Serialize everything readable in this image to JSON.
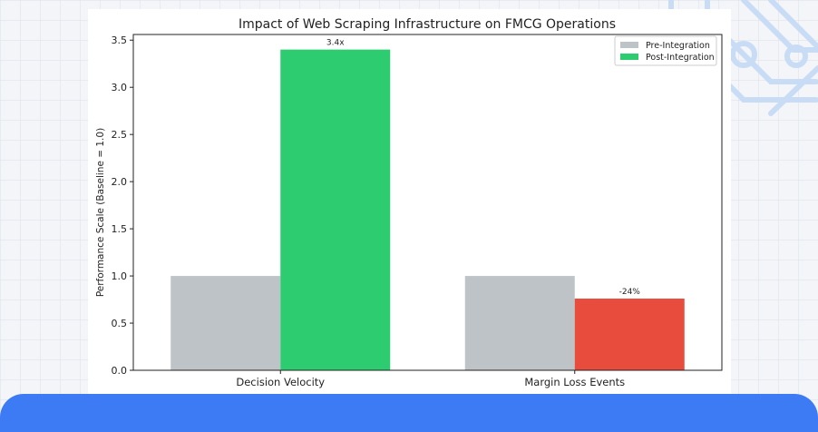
{
  "colors": {
    "pre": "#bdc3c7",
    "post_up": "#2ecc71",
    "post_down": "#e74c3c",
    "banner": "#3d7bf5",
    "decoration": "#c9dcf5"
  },
  "chart_data": {
    "type": "bar",
    "title": "Impact of Web Scraping Infrastructure on FMCG Operations",
    "xlabel": "",
    "ylabel": "Performance Scale (Baseline = 1.0)",
    "categories": [
      "Decision Velocity",
      "Margin Loss Events"
    ],
    "series": [
      {
        "name": "Pre-Integration",
        "values": [
          1.0,
          1.0
        ],
        "color": "#bdc3c7"
      },
      {
        "name": "Post-Integration",
        "values": [
          3.4,
          0.76
        ],
        "colors": [
          "#2ecc71",
          "#e74c3c"
        ],
        "color": "#2ecc71"
      }
    ],
    "bar_labels": [
      {
        "category": "Decision Velocity",
        "series": "Post-Integration",
        "text": "3.4x"
      },
      {
        "category": "Margin Loss Events",
        "series": "Post-Integration",
        "text": "-24%"
      }
    ],
    "ylim": [
      0,
      3.56
    ],
    "yticks": [
      "0.0",
      "0.5",
      "1.0",
      "1.5",
      "2.0",
      "2.5",
      "3.0",
      "3.5"
    ],
    "grid": false,
    "legend": "top-right"
  }
}
